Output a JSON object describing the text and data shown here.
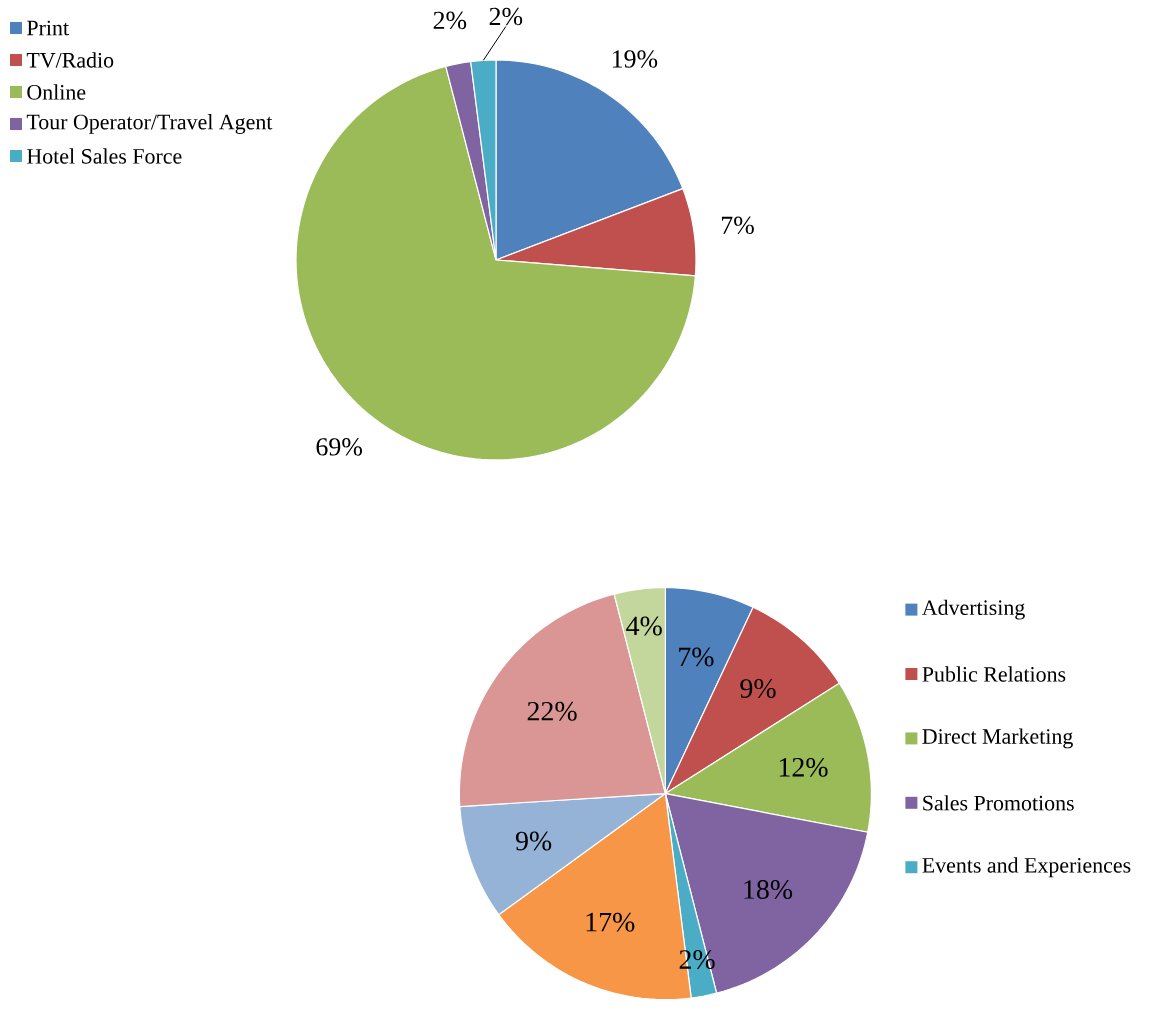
{
  "chart_data": [
    {
      "type": "pie",
      "categories": [
        "Print",
        "TV/Radio",
        "Online",
        "Tour Operator/Travel Agent",
        "Hotel Sales Force"
      ],
      "values": [
        19,
        7,
        69,
        2,
        2
      ],
      "value_labels": [
        "19%",
        "7%",
        "69%",
        "2%",
        "2%"
      ],
      "colors": [
        "#4f81bd",
        "#c0504d",
        "#9bbb59",
        "#8064a2",
        "#4bacc6"
      ],
      "legend": "top left"
    },
    {
      "type": "pie",
      "categories": [
        "Advertising",
        "Public Relations",
        "Direct Marketing",
        "Sales Promotions",
        "Events and Experiences",
        null,
        null,
        null,
        null
      ],
      "values": [
        7,
        9,
        12,
        18,
        2,
        17,
        9,
        22,
        4
      ],
      "value_labels": [
        "7%",
        "9%",
        "12%",
        "18%",
        "2%",
        "17%",
        "9%",
        "22%",
        "4%"
      ],
      "colors": [
        "#4f81bd",
        "#c0504d",
        "#9bbb59",
        "#8064a2",
        "#4bacc6",
        "#f79646",
        "#95b3d7",
        "#d99694",
        "#c3d69b"
      ],
      "legend": "right"
    }
  ]
}
